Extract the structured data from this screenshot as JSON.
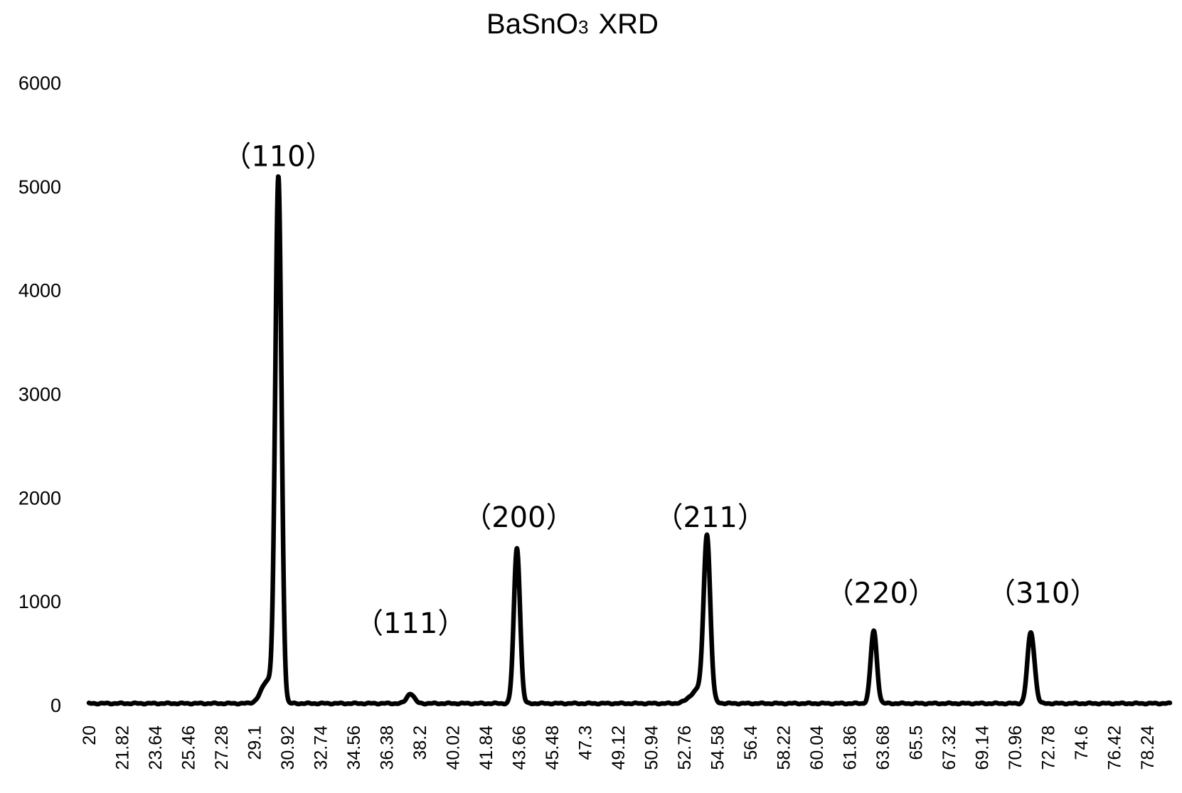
{
  "chart_data": {
    "type": "line",
    "title_main": "BaSnO",
    "title_sub": "3",
    "title_rest": "XRD",
    "xlabel": "",
    "ylabel": "",
    "xlim": [
      20,
      79.5
    ],
    "ylim": [
      0,
      6000
    ],
    "grid": false,
    "legend": "none",
    "y_ticks": [
      "0",
      "1000",
      "2000",
      "3000",
      "4000",
      "5000",
      "6000"
    ],
    "x_ticks": [
      "20",
      "21.82",
      "23.64",
      "25.46",
      "27.28",
      "29.1",
      "30.92",
      "32.74",
      "34.56",
      "36.38",
      "38.2",
      "40.02",
      "41.84",
      "43.66",
      "45.48",
      "47.3",
      "49.12",
      "50.94",
      "52.76",
      "54.58",
      "56.4",
      "58.22",
      "60.04",
      "61.86",
      "63.68",
      "65.5",
      "67.32",
      "69.14",
      "70.96",
      "72.78",
      "74.6",
      "76.42",
      "78.24"
    ],
    "baseline": 20,
    "peaks": [
      {
        "x": 30.43,
        "y": 5030,
        "width": 0.17,
        "label": "（110）"
      },
      {
        "x": 29.85,
        "y": 220,
        "width": 0.35,
        "label": ""
      },
      {
        "x": 37.7,
        "y": 95,
        "width": 0.2,
        "label": "（111）"
      },
      {
        "x": 43.56,
        "y": 1500,
        "width": 0.17,
        "label": "（200）"
      },
      {
        "x": 54.02,
        "y": 1540,
        "width": 0.18,
        "label": "（211）"
      },
      {
        "x": 53.6,
        "y": 140,
        "width": 0.45,
        "label": ""
      },
      {
        "x": 63.2,
        "y": 700,
        "width": 0.17,
        "label": "（220）"
      },
      {
        "x": 71.8,
        "y": 560,
        "width": 0.17,
        "label": "（310）"
      },
      {
        "x": 72.0,
        "y": 230,
        "width": 0.16,
        "label": ""
      }
    ],
    "label_positions": [
      {
        "text": "（110）",
        "x": 30.43,
        "y": 5200
      },
      {
        "text": "（111）",
        "x": 37.7,
        "y": 700
      },
      {
        "text": "（200）",
        "x": 43.66,
        "y": 1720
      },
      {
        "text": "（211）",
        "x": 54.2,
        "y": 1720
      },
      {
        "text": "（220）",
        "x": 63.6,
        "y": 990
      },
      {
        "text": "（310）",
        "x": 72.5,
        "y": 990
      }
    ]
  }
}
